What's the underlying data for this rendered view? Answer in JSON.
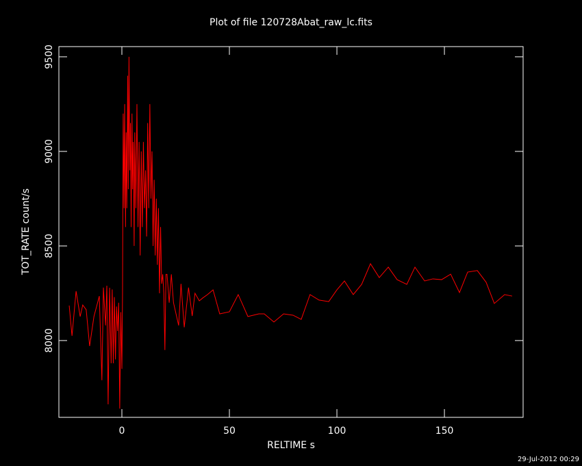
{
  "chart_data": {
    "type": "line",
    "title": "Plot of file 120728Abat_raw_lc.fits",
    "x_label": "RELTIME  s",
    "y_label": "TOT_RATE  count/s",
    "timestamp": "29-Jul-2012 00:29",
    "xlim": [
      -29.3,
      186.6
    ],
    "xticks": [
      0,
      50,
      100,
      150
    ],
    "ylim": [
      7594,
      9554
    ],
    "yticks": [
      8000,
      8500,
      9000,
      9500
    ],
    "series": [
      {
        "color": "#ff0000",
        "x": [
          -24.5,
          -23.2,
          -21.3,
          -19.4,
          -18.2,
          -16.6,
          -15,
          -13,
          -10.5,
          -9.3,
          -8.6,
          -7.6,
          -7,
          -6.4,
          -5.7,
          -5,
          -4.5,
          -4,
          -3.5,
          -3,
          -2.5,
          -2,
          -1.5,
          -1,
          -0.5,
          0,
          0.3,
          0.6,
          1,
          1.3,
          1.7,
          2,
          2.3,
          2.7,
          3,
          3.3,
          3.7,
          4,
          4.3,
          4.7,
          5,
          5.3,
          5.7,
          6,
          6.5,
          7,
          7.5,
          8,
          8.5,
          9,
          9.5,
          10,
          10.5,
          11,
          11.5,
          12,
          12.5,
          13,
          13.5,
          14,
          14.5,
          15,
          15.5,
          16,
          16.5,
          17,
          17.5,
          18,
          18.5,
          19,
          19.5,
          20,
          20.5,
          21,
          22,
          23,
          24,
          25,
          26.4,
          27.5,
          29,
          31,
          32.7,
          34,
          36,
          37.6,
          39.8,
          42.4,
          45.5,
          50,
          54.1,
          58.6,
          63.7,
          66.2,
          70.7,
          75.2,
          79.6,
          83.4,
          87.5,
          91.7,
          96.2,
          100,
          103.5,
          107.6,
          111.5,
          115.6,
          119.7,
          123.9,
          128,
          132.5,
          136.3,
          140.8,
          144.6,
          148.7,
          152.9,
          157,
          160.8,
          165.3,
          169.4,
          173.2,
          178,
          181.5
        ],
        "values": [
          8185,
          8025,
          8261,
          8127,
          8188,
          8163,
          7971,
          8127,
          8235,
          7790,
          8280,
          8080,
          8290,
          7663,
          8279,
          7880,
          8270,
          7880,
          8230,
          7900,
          8180,
          8050,
          8200,
          7640,
          8150,
          7850,
          8250,
          9200,
          8700,
          9250,
          8600,
          9100,
          8700,
          9400,
          8800,
          9500,
          8900,
          9150,
          8600,
          9200,
          8800,
          9050,
          8500,
          9100,
          8700,
          9250,
          8600,
          9050,
          8450,
          9000,
          8600,
          9050,
          8700,
          8900,
          8550,
          9150,
          8700,
          9250,
          8750,
          9000,
          8500,
          8850,
          8450,
          8750,
          8400,
          8700,
          8250,
          8600,
          8300,
          8350,
          8250,
          7950,
          8350,
          8350,
          8200,
          8350,
          8200,
          8150,
          8080,
          8300,
          8070,
          8280,
          8130,
          8250,
          8210,
          8225,
          8243,
          8268,
          8141,
          8152,
          8243,
          8127,
          8141,
          8141,
          8098,
          8141,
          8134,
          8112,
          8243,
          8214,
          8206,
          8268,
          8315,
          8243,
          8297,
          8406,
          8333,
          8388,
          8322,
          8297,
          8388,
          8315,
          8326,
          8322,
          8351,
          8254,
          8362,
          8370,
          8308,
          8196,
          8243,
          8235
        ]
      }
    ]
  }
}
